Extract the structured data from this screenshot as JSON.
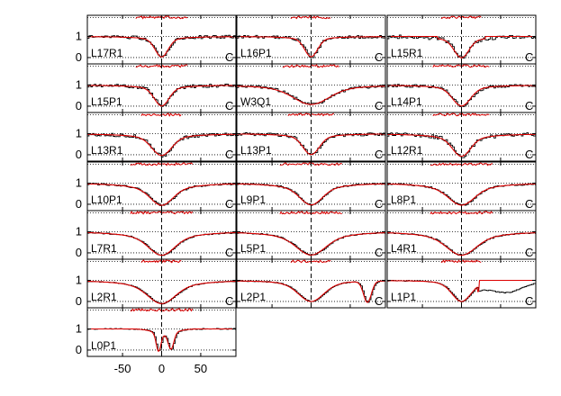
{
  "chart_data": {
    "type": "line",
    "title": "",
    "xlabel": "",
    "ylabel": "",
    "xlim": [
      -95,
      95
    ],
    "ylim": [
      -0.3,
      2.0
    ],
    "x_ticks": [
      -50,
      0,
      50
    ],
    "x_tick_labels": [
      "-50",
      "0",
      "50"
    ],
    "y_ticks": [
      0,
      1
    ],
    "y_tick_labels": [
      "0",
      "1"
    ],
    "grid": "dotted horizontal lines at 0, 1 and 1.9; dashed vertical line at 0",
    "colors": {
      "observed": "#000000",
      "model": "#dd0000",
      "residual": "#dd0000"
    },
    "panels": [
      {
        "label": "L17R1",
        "corner": "C",
        "row": 0,
        "col": 0,
        "profile": "line",
        "depth": 0.95,
        "width": 8,
        "wings": 0.05,
        "noise": 0.08,
        "residual_spread": 0.8,
        "model_flat": false
      },
      {
        "label": "L16P1",
        "corner": "C",
        "row": 0,
        "col": 1,
        "profile": "line",
        "depth": 0.95,
        "width": 8,
        "wings": 0.02,
        "noise": 0.07,
        "residual_spread": 0.6,
        "model_flat": false
      },
      {
        "label": "L15R1",
        "corner": "C",
        "row": 0,
        "col": 2,
        "profile": "line",
        "depth": 0.95,
        "width": 9,
        "wings": 0.15,
        "noise": 0.09,
        "residual_spread": 0.6,
        "model_flat": true
      },
      {
        "label": "L15P1",
        "corner": "C",
        "row": 1,
        "col": 0,
        "profile": "line",
        "depth": 0.95,
        "width": 9,
        "wings": 0.1,
        "noise": 0.08,
        "residual_spread": 0.8,
        "model_flat": false
      },
      {
        "label": "W3Q1",
        "corner": "C",
        "row": 1,
        "col": 1,
        "profile": "broad",
        "depth": 0.9,
        "width": 22,
        "wings": 0.1,
        "noise": 0.07,
        "residual_spread": 0.9,
        "model_flat": false
      },
      {
        "label": "L14P1",
        "corner": "C",
        "row": 1,
        "col": 2,
        "profile": "line",
        "depth": 0.95,
        "width": 11,
        "wings": 0.1,
        "noise": 0.07,
        "residual_spread": 0.9,
        "model_flat": false
      },
      {
        "label": "L13R1",
        "corner": "C",
        "row": 2,
        "col": 0,
        "profile": "line",
        "depth": 0.95,
        "width": 12,
        "wings": 0.2,
        "noise": 0.08,
        "residual_spread": 0.6,
        "model_flat": false
      },
      {
        "label": "L13P1",
        "corner": "C",
        "row": 2,
        "col": 1,
        "profile": "line",
        "depth": 0.95,
        "width": 10,
        "wings": 0.1,
        "noise": 0.07,
        "residual_spread": 0.7,
        "model_flat": false
      },
      {
        "label": "L12R1",
        "corner": "C",
        "row": 2,
        "col": 2,
        "profile": "line",
        "depth": 0.95,
        "width": 11,
        "wings": 0.3,
        "noise": 0.09,
        "residual_spread": 0.9,
        "model_flat": false
      },
      {
        "label": "L10P1",
        "corner": "C",
        "row": 3,
        "col": 0,
        "profile": "broad",
        "depth": 0.95,
        "width": 14,
        "wings": 0.5,
        "noise": 0.04,
        "residual_spread": 1.0,
        "model_flat": false
      },
      {
        "label": "L9P1",
        "corner": "C",
        "row": 3,
        "col": 1,
        "profile": "broad",
        "depth": 0.95,
        "width": 14,
        "wings": 0.4,
        "noise": 0.04,
        "residual_spread": 1.0,
        "model_flat": false
      },
      {
        "label": "L8P1",
        "corner": "C",
        "row": 3,
        "col": 2,
        "profile": "broad",
        "depth": 0.95,
        "width": 16,
        "wings": 0.45,
        "noise": 0.04,
        "residual_spread": 1.0,
        "model_flat": false
      },
      {
        "label": "L7R1",
        "corner": "C",
        "row": 4,
        "col": 0,
        "profile": "broad",
        "depth": 1.0,
        "width": 16,
        "wings": 0.55,
        "noise": 0.03,
        "residual_spread": 1.0,
        "model_flat": false
      },
      {
        "label": "L5P1",
        "corner": "C",
        "row": 4,
        "col": 1,
        "profile": "broad",
        "depth": 1.0,
        "width": 18,
        "wings": 0.5,
        "noise": 0.03,
        "residual_spread": 1.0,
        "model_flat": false
      },
      {
        "label": "L4R1",
        "corner": "C",
        "row": 4,
        "col": 2,
        "profile": "broad",
        "depth": 1.0,
        "width": 18,
        "wings": 0.55,
        "noise": 0.03,
        "residual_spread": 1.0,
        "model_flat": false
      },
      {
        "label": "L2R1",
        "corner": "C",
        "row": 5,
        "col": 0,
        "profile": "broad",
        "depth": 1.0,
        "width": 17,
        "wings": 0.5,
        "noise": 0.02,
        "residual_spread": 0.6,
        "model_flat": false
      },
      {
        "label": "L2P1",
        "corner": "C",
        "row": 5,
        "col": 1,
        "profile": "double",
        "depth": 1.0,
        "width": 16,
        "wings": 0.4,
        "noise": 0.02,
        "residual_spread": 0.6,
        "model_flat": false
      },
      {
        "label": "L1P1",
        "corner": "C",
        "row": 5,
        "col": 2,
        "profile": "asym",
        "depth": 1.0,
        "width": 12,
        "wings": 0.35,
        "noise": 0.02,
        "residual_spread": 0.6,
        "model_flat": true
      },
      {
        "label": "L0P1",
        "corner": "",
        "row": 6,
        "col": 0,
        "profile": "split",
        "depth": 0.8,
        "width": 6,
        "wings": 0.1,
        "noise": 0.02,
        "residual_spread": 1.0,
        "model_flat": false
      }
    ]
  }
}
